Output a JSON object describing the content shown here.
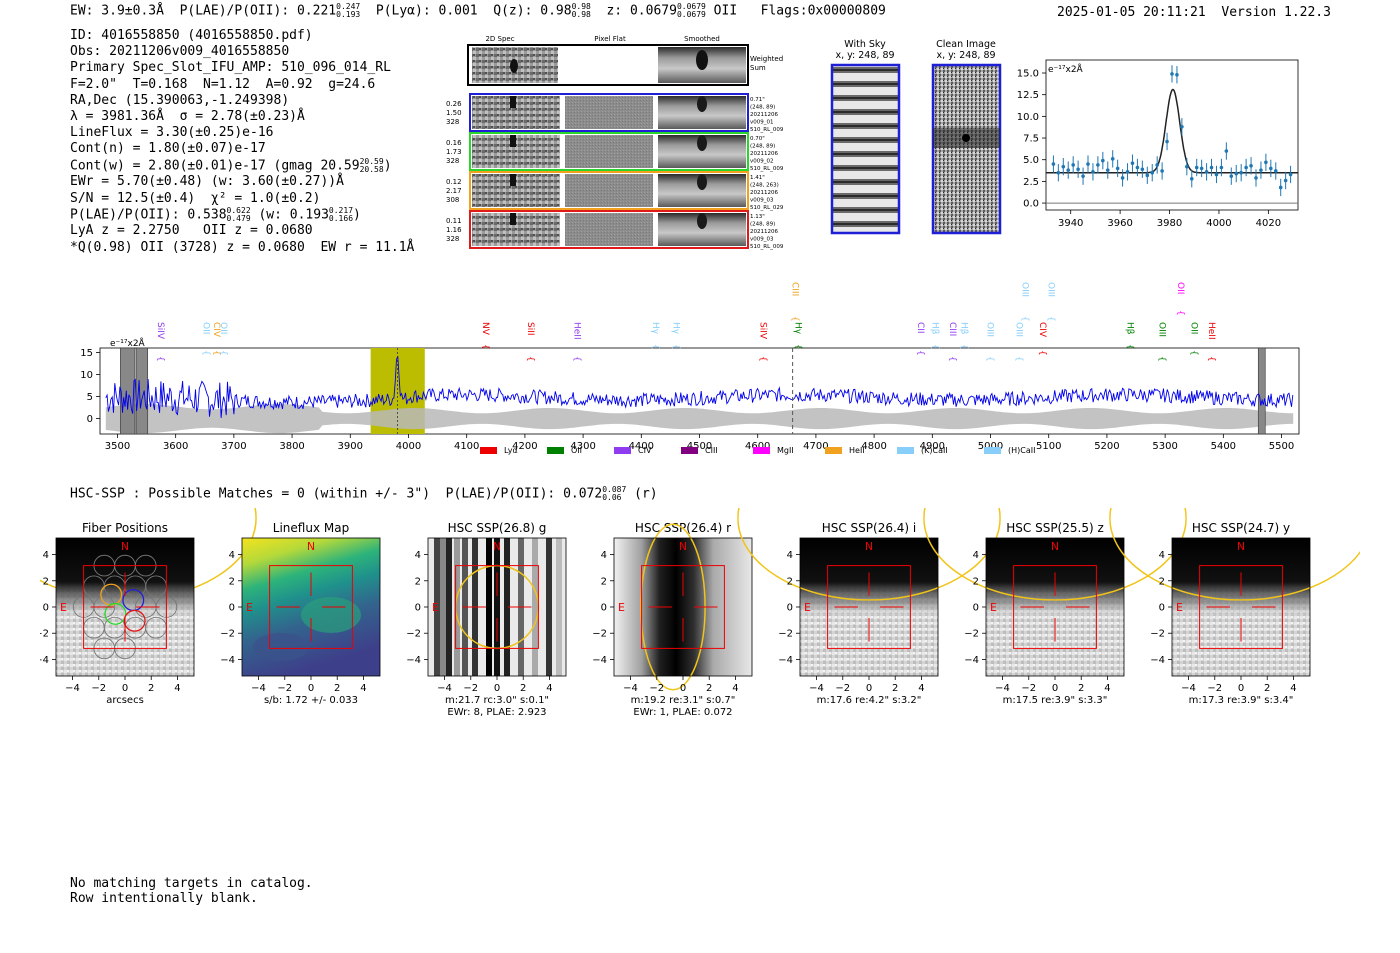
{
  "header": {
    "ew": "EW: 3.9±0.3Å",
    "plae_label": "P(LAE)/P(OII): 0.221",
    "plae_hi": "0.247",
    "plae_lo": "0.193",
    "plya": "P(Lyα): 0.001",
    "qz_label": "Q(z): 0.98",
    "qz_hi": "0.98",
    "qz_lo": "0.98",
    "z_label": "z: 0.0679",
    "z_hi": "0.0679",
    "z_lo": "0.0679",
    "z_line": "OII",
    "flags": "Flags:0x00000809",
    "timestamp": "2025-01-05 20:11:21",
    "version": "Version 1.22.3"
  },
  "info": {
    "id": "ID: 4016558850 (4016558850.pdf)",
    "obs": "Obs: 20211206v009_4016558850",
    "primary": "Primary Spec_Slot_IFU_AMP: 510_096_014_RL",
    "params": "F=2.0\"  T=0.168  N=1.12  A=0.92  g=24.6",
    "radec": "RA,Dec (15.390063,-1.249398)",
    "lambda": "λ = 3981.36Å  σ = 2.78(±0.23)Å",
    "lineflux": "LineFlux = 3.30(±0.25)e-16",
    "contn": "Cont(n) = 1.80(±0.07)e-17",
    "contw_label": "Cont(w) = 2.80(±0.01)e-17 (gmag 20.59",
    "contw_hi": "20.59",
    "contw_lo": "20.58",
    "contw_end": ")",
    "ewr": "EWr = 5.70(±0.48) (w: 3.60(±0.27))Å",
    "sn": "S/N = 12.5(±0.4)  χ² = 1.0(±0.2)",
    "plae_label": "P(LAE)/P(OII): 0.538",
    "plae_hi": "0.622",
    "plae_lo": "0.479",
    "plae_mid": " (w: 0.193",
    "plae_w_hi": "0.217",
    "plae_w_lo": "0.166",
    "plae_end": ")",
    "lya": "LyA z = 2.2750   OII z = 0.0680",
    "q": "*Q(0.98) OII (3728) z = 0.0680  EW r = 11.1Å"
  },
  "cutouts": {
    "headers": [
      "2D Spec",
      "Pixel Flat",
      "Smoothed"
    ],
    "weighted": [
      "Weighted",
      "Sum"
    ],
    "rows": [
      {
        "color": "#1f1fd6",
        "left": [
          "0.26",
          "1.50",
          "328"
        ],
        "right": [
          "0.71\"",
          "(248, 89)",
          "20211206",
          "v009_01",
          "510_RL_009"
        ]
      },
      {
        "color": "#2ad62a",
        "left": [
          "0.16",
          "1.73",
          "328"
        ],
        "right": [
          "0.70\"",
          "(248, 89)",
          "20211206",
          "v009_02",
          "510_RL_009"
        ]
      },
      {
        "color": "#f0a21e",
        "left": [
          "0.12",
          "2.17",
          "308"
        ],
        "right": [
          "1.41\"",
          "(248, 263)",
          "20211206",
          "v009_03",
          "510_RL_029"
        ]
      },
      {
        "color": "#e01a1a",
        "left": [
          "0.11",
          "1.16",
          "328"
        ],
        "right": [
          "1.13\"",
          "(248, 89)",
          "20211206",
          "v009_03",
          "510_RL_009"
        ]
      }
    ],
    "with_sky": [
      "With Sky",
      "x, y: 248, 89"
    ],
    "clean": [
      "Clean Image",
      "x, y: 248, 89"
    ]
  },
  "line_fit": {
    "type": "scatter",
    "unit_label": "e⁻¹⁷x2Å",
    "xlim": [
      3930,
      4032
    ],
    "ylim": [
      -0.8,
      16.5
    ],
    "xticks": [
      3940,
      3960,
      3980,
      4000,
      4020
    ],
    "yticks": [
      "0.0",
      "2.5",
      "5.0",
      "7.5",
      "10.0",
      "12.5",
      "15.0"
    ],
    "x": [
      3933,
      3935,
      3937,
      3939,
      3941,
      3943,
      3945,
      3947,
      3949,
      3951,
      3953,
      3955,
      3957,
      3959,
      3961,
      3963,
      3965,
      3967,
      3969,
      3971,
      3973,
      3975,
      3977,
      3979,
      3981,
      3983,
      3985,
      3987,
      3989,
      3991,
      3993,
      3995,
      3997,
      3999,
      4001,
      4003,
      4005,
      4007,
      4009,
      4011,
      4013,
      4015,
      4017,
      4019,
      4021,
      4023,
      4025,
      4027,
      4029
    ],
    "y": [
      4.5,
      3.5,
      4.2,
      3.8,
      4.4,
      3.9,
      3.1,
      4.5,
      3.6,
      4.4,
      4.9,
      3.8,
      5.1,
      4.0,
      2.9,
      3.6,
      4.6,
      4.1,
      3.9,
      3.2,
      3.5,
      4.4,
      3.7,
      7.1,
      14.9,
      14.8,
      8.8,
      4.2,
      2.8,
      4.1,
      4.0,
      3.6,
      4.1,
      3.3,
      4.1,
      6.0,
      3.1,
      3.4,
      3.5,
      4.1,
      4.3,
      2.9,
      3.8,
      4.7,
      4.0,
      3.7,
      1.8,
      2.6,
      3.3
    ],
    "yerr": 1.0,
    "model": {
      "center": 3981.36,
      "sigma": 2.78,
      "cont": 3.5,
      "amp": 9.6
    }
  },
  "spectrum": {
    "type": "line",
    "unit_label": "e⁻¹⁷x2Å",
    "xlim": [
      3470,
      5530
    ],
    "ylim": [
      -3.5,
      16
    ],
    "xticks": [
      3500,
      3600,
      3700,
      3800,
      3900,
      4000,
      4100,
      4200,
      4300,
      4400,
      4500,
      4600,
      4700,
      4800,
      4900,
      5000,
      5100,
      5200,
      5300,
      5400,
      5500
    ],
    "yticks": [
      0,
      5,
      10,
      15
    ],
    "highlight_range": [
      3935,
      4028
    ],
    "peak": {
      "x": 3981,
      "y": 14.8
    },
    "dashed_line": 4660,
    "masked_bands": [
      [
        3505,
        3530
      ],
      [
        3532,
        3552
      ],
      [
        5460,
        5472
      ]
    ],
    "series_color": "#0000ee",
    "line_labels": [
      {
        "text": "SiIV",
        "x": 3570,
        "color": "#8f3cf0",
        "row": 2
      },
      {
        "text": "OII",
        "x": 3648,
        "color": "#87cefa",
        "row": 2
      },
      {
        "text": "CIV",
        "x": 3666,
        "color": "#f0a21e",
        "row": 2
      },
      {
        "text": "OII",
        "x": 3678,
        "color": "#87cefa",
        "row": 2
      },
      {
        "text": "NV",
        "x": 4128,
        "color": "#ee0000",
        "row": 2
      },
      {
        "text": "SiII",
        "x": 4205,
        "color": "#ee0000",
        "row": 2
      },
      {
        "text": "HeII",
        "x": 4285,
        "color": "#8f3cf0",
        "row": 2
      },
      {
        "text": "Hγ",
        "x": 4420,
        "color": "#87cefa",
        "row": 2
      },
      {
        "text": "Hγ",
        "x": 4455,
        "color": "#87cefa",
        "row": 2
      },
      {
        "text": "SiIV",
        "x": 4605,
        "color": "#ee0000",
        "row": 2
      },
      {
        "text": "Hγ",
        "x": 4665,
        "color": "#008000",
        "row": 2
      },
      {
        "text": "CIII",
        "x": 4660,
        "color": "#f0a21e",
        "row": 0
      },
      {
        "text": "CII",
        "x": 4875,
        "color": "#8f3cf0",
        "row": 2
      },
      {
        "text": "Hβ",
        "x": 4900,
        "color": "#87cefa",
        "row": 2
      },
      {
        "text": "CIII",
        "x": 4930,
        "color": "#8f3cf0",
        "row": 2
      },
      {
        "text": "Hβ",
        "x": 4950,
        "color": "#87cefa",
        "row": 2
      },
      {
        "text": "OIII",
        "x": 4995,
        "color": "#87cefa",
        "row": 2
      },
      {
        "text": "OIII",
        "x": 5045,
        "color": "#87cefa",
        "row": 2
      },
      {
        "text": "CIV",
        "x": 5085,
        "color": "#ee0000",
        "row": 2
      },
      {
        "text": "OIII",
        "x": 5055,
        "color": "#87cefa",
        "row": 0
      },
      {
        "text": "OIII",
        "x": 5100,
        "color": "#87cefa",
        "row": 0
      },
      {
        "text": "Hβ",
        "x": 5235,
        "color": "#008000",
        "row": 2
      },
      {
        "text": "OIII",
        "x": 5290,
        "color": "#008000",
        "row": 2
      },
      {
        "text": "OII",
        "x": 5345,
        "color": "#008000",
        "row": 2
      },
      {
        "text": "HeII",
        "x": 5375,
        "color": "#ee0000",
        "row": 2
      },
      {
        "text": "OII",
        "x": 5322,
        "color": "#ff00ff",
        "row": 0
      }
    ],
    "legend": [
      {
        "label": "Lyα",
        "color": "#ee0000"
      },
      {
        "label": "OII",
        "color": "#008000"
      },
      {
        "label": "CIV",
        "color": "#8f3cf0"
      },
      {
        "label": "CIII",
        "color": "#800080"
      },
      {
        "label": "MgII",
        "color": "#ff00ff"
      },
      {
        "label": "HeII",
        "color": "#f0a21e"
      },
      {
        "label": "(K)CaII",
        "color": "#87cefa"
      },
      {
        "label": "(H)CaII",
        "color": "#87cefa"
      }
    ]
  },
  "hsc": {
    "label": "HSC-SSP : Possible Matches = 0 (within +/- 3\")  P(LAE)/P(OII): 0.072",
    "plae_hi": "0.087",
    "plae_lo": "0.06",
    "band": "(r)",
    "ticks": [
      "−4",
      "−2",
      "0",
      "2",
      "4"
    ],
    "north": "N",
    "east": "E",
    "panels": [
      {
        "title": "Fiber Positions",
        "caption": [
          "arcsecs"
        ],
        "kind": "fibers"
      },
      {
        "title": "Lineflux Map",
        "caption": [
          "s/b: 1.72 +/- 0.033"
        ],
        "kind": "lineflux"
      },
      {
        "title": "HSC SSP(26.8) g",
        "caption": [
          "m:21.7 rc:3.0\"  s:0.1\"",
          "EWr: 8, PLAE: 2.923"
        ],
        "kind": "stripes"
      },
      {
        "title": "HSC SSP(26.4) r",
        "caption": [
          "m:19.2  re:3.1\"  s:0.7\"",
          "EWr: 1, PLAE: 0.072"
        ],
        "kind": "column"
      },
      {
        "title": "HSC SSP(26.4) i",
        "caption": [
          "m:17.6  re:4.2\"  s:3.2\""
        ],
        "kind": "blob"
      },
      {
        "title": "HSC SSP(25.5) z",
        "caption": [
          "m:17.5  re:3.9\"  s:3.3\""
        ],
        "kind": "blob"
      },
      {
        "title": "HSC SSP(24.7) y",
        "caption": [
          "m:17.3  re:3.9\"  s:3.4\""
        ],
        "kind": "blob"
      }
    ]
  },
  "footer": {
    "line1": "No matching targets in catalog.",
    "line2": "Row intentionally blank."
  }
}
